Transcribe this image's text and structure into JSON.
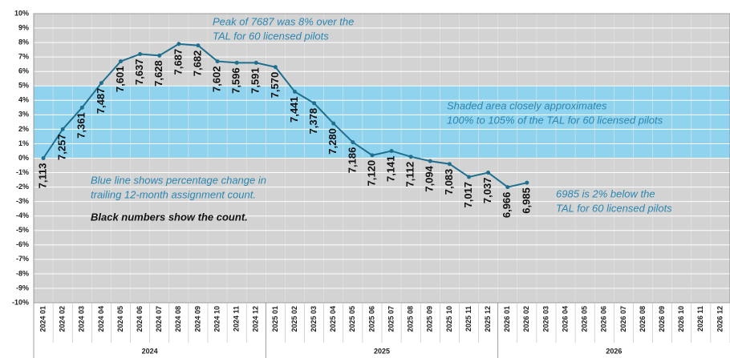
{
  "chart_data": {
    "type": "line",
    "categories": [
      "2024 01",
      "2024 02",
      "2024 03",
      "2024 04",
      "2024 05",
      "2024 06",
      "2024 07",
      "2024 08",
      "2024 09",
      "2024 10",
      "2024 11",
      "2024 12",
      "2025 01",
      "2025 02",
      "2025 03",
      "2025 04",
      "2025 05",
      "2025 06",
      "2025 07",
      "2025 08",
      "2025 09",
      "2025 10",
      "2025 11",
      "2025 12",
      "2026 01",
      "2026 02",
      "2026 03",
      "2026 04",
      "2026 05",
      "2026 06",
      "2026 07",
      "2026 08",
      "2026 09",
      "2026 10",
      "2026 11",
      "2026 12"
    ],
    "groups": [
      {
        "label": "2024",
        "size": 12
      },
      {
        "label": "2025",
        "size": 12
      },
      {
        "label": "2026",
        "size": 12
      }
    ],
    "series": [
      {
        "color": "#1f6f8f",
        "values": [
          0.0,
          2.0,
          3.5,
          5.2,
          6.7,
          7.2,
          7.1,
          7.9,
          7.8,
          6.7,
          6.6,
          6.6,
          6.3,
          4.6,
          3.8,
          2.4,
          1.1,
          0.2,
          0.5,
          0.1,
          -0.2,
          -0.4,
          -1.3,
          -1.0,
          -2.0,
          -1.7,
          null,
          null,
          null,
          null,
          null,
          null,
          null,
          null,
          null,
          null
        ]
      }
    ],
    "counts": {
      "values": [
        7113,
        7257,
        7361,
        7487,
        7601,
        7637,
        7628,
        7687,
        7682,
        7602,
        7596,
        7591,
        7570,
        7441,
        7378,
        7280,
        7186,
        7120,
        7141,
        7112,
        7094,
        7083,
        7017,
        7037,
        6966,
        6985
      ],
      "value_labels": [
        "7,113",
        "7,257",
        "7,361",
        "7,487",
        "7,601",
        "7,637",
        "7,628",
        "7,687",
        "7,682",
        "7,602",
        "7,596",
        "7,591",
        "7,570",
        "7,441",
        "7,378",
        "7,280",
        "7,186",
        "7,120",
        "7,141",
        "7,112",
        "7,094",
        "7,083",
        "7,017",
        "7,037",
        "6,966",
        "6,985"
      ]
    },
    "shaded_band": {
      "range": [
        0,
        5
      ],
      "color": "#8fd3ef"
    },
    "ylim": [
      -10,
      10
    ],
    "yticks": [
      {
        "value": -10,
        "label": "-10%"
      },
      {
        "value": -9,
        "label": "-9%"
      },
      {
        "value": -8,
        "label": "-8%"
      },
      {
        "value": -7,
        "label": "-7%"
      },
      {
        "value": -6,
        "label": "-6%"
      },
      {
        "value": -5,
        "label": "-5%"
      },
      {
        "value": -4,
        "label": "-4%"
      },
      {
        "value": -3,
        "label": "-3%"
      },
      {
        "value": -2,
        "label": "-2%"
      },
      {
        "value": -1,
        "label": "-1%"
      },
      {
        "value": 0,
        "label": "0%"
      },
      {
        "value": 1,
        "label": "1%"
      },
      {
        "value": 2,
        "label": "2%"
      },
      {
        "value": 3,
        "label": "3%"
      },
      {
        "value": 4,
        "label": "4%"
      },
      {
        "value": 5,
        "label": "5%"
      },
      {
        "value": 6,
        "label": "6%"
      },
      {
        "value": 7,
        "label": "7%"
      },
      {
        "value": 8,
        "label": "8%"
      },
      {
        "value": 9,
        "label": "9%"
      },
      {
        "value": 10,
        "label": "10%"
      }
    ],
    "grid": true,
    "annotations": [
      {
        "lines": [
          "Peak of 7687 was 8% over the",
          "TAL for 60 licensed pilots"
        ],
        "color": "#2b86b0"
      },
      {
        "lines": [
          "Shaded area closely approximates",
          "100% to 105% of the TAL for 60 licensed pilots"
        ],
        "color": "#2b86b0"
      },
      {
        "lines": [
          "Blue line shows percentage change in",
          "trailing 12-month assignment count."
        ],
        "color": "#2b86b0"
      },
      {
        "lines": [
          "Black numbers show the count."
        ],
        "color": "#111111"
      },
      {
        "lines": [
          "6985 is 2% below the",
          "TAL for 60 licensed pilots"
        ],
        "color": "#2b86b0"
      }
    ]
  }
}
